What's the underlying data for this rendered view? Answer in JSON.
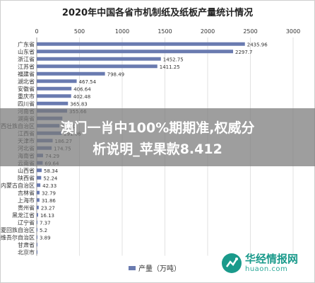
{
  "chart_data": {
    "type": "bar",
    "orientation": "horizontal",
    "title": "2020年中国各省市机制纸及纸板产量统计情况",
    "legend": "产量（万吨）",
    "legend_position": "bottom",
    "xlim": [
      0,
      3000
    ],
    "ticks": [
      0,
      500,
      1000,
      1500,
      2000,
      2500,
      3000
    ],
    "grid": true,
    "bar_color": "#6a7bb0",
    "categories": [
      "广东省",
      "山东省",
      "浙江省",
      "江苏省",
      "福建省",
      "湖北省",
      "安徽省",
      "重庆市",
      "四川省",
      "河南省",
      "湖南省",
      "广西壮族自治区",
      "江西省",
      "天津市",
      "河北省",
      "海南省",
      "云南省",
      "山西省",
      "陕西省",
      "内蒙古自治区",
      "吉林省",
      "上海市",
      "贵州省",
      "黑龙江省",
      "辽宁省",
      "宁夏回族自治区",
      "新疆维吾尔自治区",
      "甘肃省",
      "北京市"
    ],
    "values": [
      2435.96,
      2297.7,
      1452.75,
      1411.25,
      798.49,
      467.54,
      406.64,
      402.48,
      365.83,
      355.66,
      300.0,
      266.0,
      291.06,
      186.27,
      174.75,
      74.29,
      69.64,
      58.34,
      52.24,
      42.33,
      32.79,
      31.86,
      23.27,
      16.13,
      7.37,
      5.2,
      3.89,
      2.5,
      1.0
    ],
    "labels": [
      "2435.96",
      "2297.7",
      "1452.75",
      "1411.25",
      "798.49",
      "467.54",
      "406.64",
      "402.48",
      "365.83",
      "355.66",
      "",
      "266.0",
      "291.06",
      "186.27",
      "174.75",
      "74.29",
      "69.64",
      "58.34",
      "52.24",
      "42.33",
      "32.79",
      "31.86",
      "23.27",
      "16.13",
      "7.37",
      "5.2",
      "3.89",
      "",
      ""
    ]
  },
  "overlay": {
    "line1": "澳门一肖中100%期期准,权威分",
    "line2": "析说明_苹果款8.412"
  },
  "watermark": {
    "name": "华经情报网",
    "url": "huaon.com"
  }
}
